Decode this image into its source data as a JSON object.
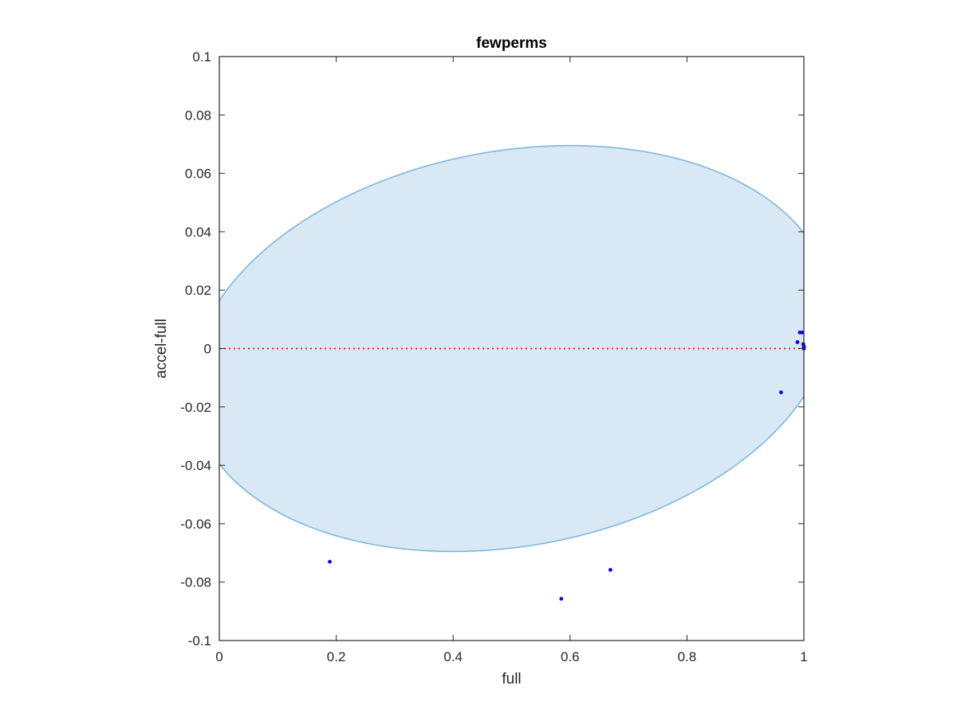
{
  "chart_data": {
    "type": "scatter",
    "title": "fewperms",
    "xlabel": "full",
    "ylabel": "accel-full",
    "xlim": [
      0,
      1
    ],
    "ylim": [
      -0.1,
      0.1
    ],
    "xticks": [
      0,
      0.2,
      0.4,
      0.6,
      0.8,
      1
    ],
    "xtick_labels": [
      "0",
      "0.2",
      "0.4",
      "0.6",
      "0.8",
      "1"
    ],
    "yticks": [
      -0.1,
      -0.08,
      -0.06,
      -0.04,
      -0.02,
      0,
      0.02,
      0.04,
      0.06,
      0.08,
      0.1
    ],
    "ytick_labels": [
      "-0.1",
      "-0.08",
      "-0.06",
      "-0.04",
      "-0.02",
      "0",
      "0.02",
      "0.04",
      "0.06",
      "0.08",
      "0.1"
    ],
    "grid": false,
    "region": {
      "name": "shaded ellipse",
      "center_x": 0.5,
      "center_y": 0,
      "x_at_y_extremes": [
        0.4,
        0.58
      ],
      "y_max": 0.0695,
      "y_min": -0.0695,
      "fill": "#d9e8f5",
      "edge": "#88bde1"
    },
    "reference_line": {
      "y": 0,
      "style": "dotted",
      "color": "#ff0000"
    },
    "series": [
      {
        "marker_color": "#0000ff",
        "x": [
          0.189,
          0.585,
          0.669,
          0.961,
          0.989,
          0.993,
          0.997,
          0.999,
          1.0,
          1.0,
          1.0
        ],
        "y": [
          -0.073,
          -0.0857,
          -0.0758,
          -0.015,
          0.0022,
          0.0055,
          0.0055,
          0.0015,
          0.0008,
          0.0003,
          0.0
        ]
      }
    ]
  }
}
